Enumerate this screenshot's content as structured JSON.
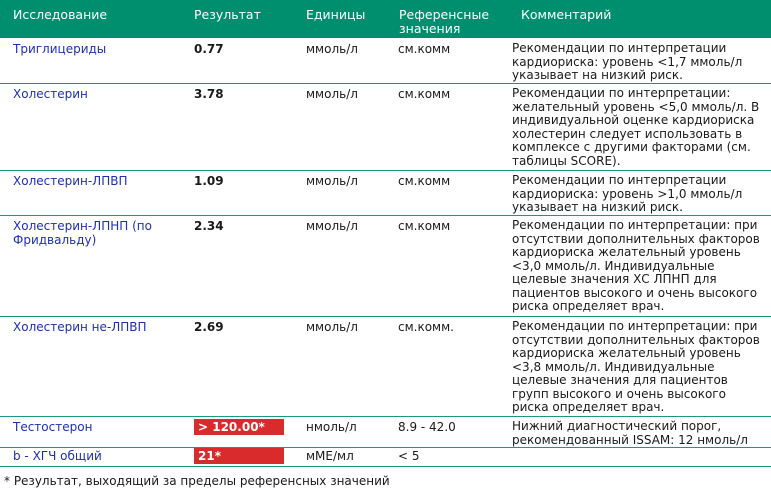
{
  "header": {
    "col_test": "Исследование",
    "col_result": "Результат",
    "col_units": "Единицы",
    "col_ref": "Референсные значения",
    "col_comment": "Комментарий"
  },
  "rows": [
    {
      "name": "Триглицериды",
      "result": "0.77",
      "units": "ммоль/л",
      "ref": "см.комм",
      "comment": "Рекомендации по интерпретации кардиориска: уровень <1,7 ммоль/л указывает на низкий риск."
    },
    {
      "name": "Холестерин",
      "result": "3.78",
      "units": "ммоль/л",
      "ref": "см.комм",
      "comment": "Рекомендации по интерпретации: желательный уровень <5,0 ммоль/л. В индивидуальной оценке кардиориска холестерин следует использовать в комплексе с другими факторами (см. таблицы SCORE)."
    },
    {
      "name": "Холестерин-ЛПВП",
      "result": "1.09",
      "units": "ммоль/л",
      "ref": "см.комм",
      "comment": "Рекомендации по интерпретации кардиориска: уровень >1,0 ммоль/л указывает на низкий риск."
    },
    {
      "name": "Холестерин-ЛПНП (по Фридвальду)",
      "result": "2.34",
      "units": "ммоль/л",
      "ref": "см.комм",
      "comment": "Рекомендации по интерпретации: при отсутствии дополнительных факторов кардиориска желательный уровень <3,0 ммоль/л. Индивидуальные целевые значения ХС ЛПНП для пациентов высокого и очень высокого риска определяет врач."
    },
    {
      "name": "Холестерин не-ЛПВП",
      "result": "2.69",
      "units": "ммоль/л",
      "ref": "см.комм.",
      "comment": "Рекомендации по интерпретации: при отсутствии дополнительных факторов кардиориска желательный уровень <3,8 ммоль/л. Индивидуальные целевые значения для пациентов групп высокого и очень высокого риска определяет врач."
    },
    {
      "name": "Тестостерон",
      "result": "> 120.00*",
      "units": "нмоль/л",
      "ref": "8.9 - 42.0",
      "comment": "Нижний диагностический порог, рекомендованный ISSAM: 12 нмоль/л"
    },
    {
      "name": "b - ХГЧ общий",
      "result": "21*",
      "units": "мМЕ/мл",
      "ref": "< 5",
      "comment": ""
    }
  ],
  "footnote": "* Результат, выходящий за пределы референсных значений",
  "colors": {
    "header_bg": "#008f6e",
    "flag_bg": "#d92b2b",
    "name_text": "#1e2fb0"
  }
}
